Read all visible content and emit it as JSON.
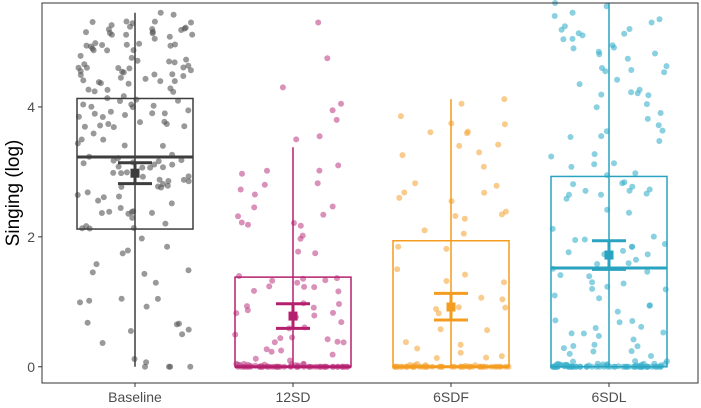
{
  "chart_data": {
    "type": "boxplot-jitter",
    "title": "",
    "xlabel": "",
    "ylabel": "Singing (log)",
    "ylim": [
      -0.25,
      5.6
    ],
    "yticks": [
      0,
      2,
      4
    ],
    "grid": false,
    "categories": [
      "Baseline",
      "12SD",
      "6SDF",
      "6SDL"
    ],
    "series": [
      {
        "name": "Baseline",
        "color": "#3d3d3d",
        "point_color": "#555555",
        "box": {
          "whisker_low": 0.0,
          "q1": 2.12,
          "median": 3.23,
          "q3": 4.13,
          "whisker_high": 5.45
        },
        "mean": 2.98,
        "ci": [
          2.82,
          3.14
        ],
        "n_points": 175,
        "n_zero": 4,
        "highlights": [
          5.45,
          5.42,
          5.3,
          5.2,
          5.05,
          4.9,
          4.7,
          4.6,
          4.5,
          0.12,
          0.5,
          0.55
        ]
      },
      {
        "name": "12SD",
        "color": "#b5206e",
        "point_color": "#c2478a",
        "box": {
          "whisker_low": 0.0,
          "q1": 0.0,
          "median": 0.0,
          "q3": 1.38,
          "whisker_high": 3.38
        },
        "mean": 0.78,
        "ci": [
          0.59,
          0.97
        ],
        "n_points": 130,
        "n_zero": 48,
        "highlights": [
          5.3,
          4.75,
          4.3,
          4.05,
          3.95,
          3.8,
          3.55,
          3.5,
          3.1
        ]
      },
      {
        "name": "6SDF",
        "color": "#f39c1f",
        "point_color": "#f5a93f",
        "box": {
          "whisker_low": 0.0,
          "q1": 0.0,
          "median": 0.0,
          "q3": 1.94,
          "whisker_high": 4.12
        },
        "mean": 0.92,
        "ci": [
          0.72,
          1.13
        ],
        "n_points": 100,
        "n_zero": 48,
        "highlights": [
          4.12,
          4.05,
          3.42,
          3.3,
          3.08,
          2.68,
          2.6,
          2.55,
          2.1,
          2.05
        ]
      },
      {
        "name": "6SDL",
        "color": "#2aa3c0",
        "point_color": "#3ab0cb",
        "box": {
          "whisker_low": 0.0,
          "q1": 0.0,
          "median": 1.52,
          "q3": 2.93,
          "whisker_high": 5.6
        },
        "mean": 1.72,
        "ci": [
          1.5,
          1.94
        ],
        "n_points": 190,
        "n_zero": 55,
        "highlights": [
          5.6,
          5.55,
          5.45,
          5.4,
          5.35,
          5.3,
          5.2,
          4.95,
          4.85,
          4.6
        ]
      }
    ]
  }
}
